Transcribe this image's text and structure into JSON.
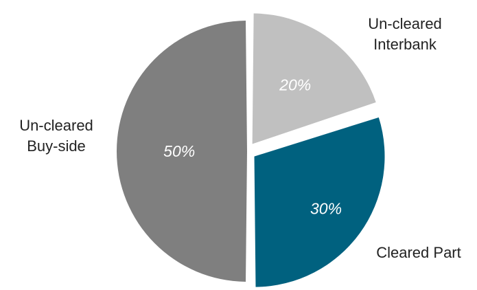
{
  "chart_data": {
    "type": "pie",
    "title": "",
    "slices": [
      {
        "label_lines": [
          "Un-cleared",
          "Interbank"
        ],
        "value": 20,
        "value_label": "20%",
        "color": "#c0c0c0",
        "exploded": true
      },
      {
        "label_lines": [
          "Cleared Part"
        ],
        "value": 30,
        "value_label": "30%",
        "color": "#00617f",
        "exploded": true
      },
      {
        "label_lines": [
          "Un-cleared",
          "Buy-side"
        ],
        "value": 50,
        "value_label": "50%",
        "color": "#7f7f7f",
        "exploded": false
      }
    ],
    "legend": "none",
    "start_angle_deg": 0,
    "direction": "clockwise"
  }
}
